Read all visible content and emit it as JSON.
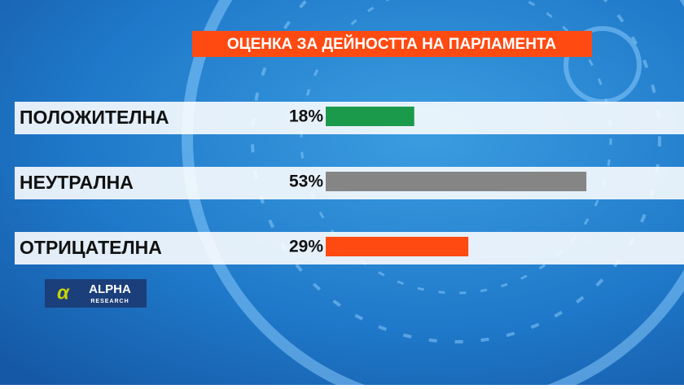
{
  "chart_data": {
    "type": "bar",
    "title": "ОЦЕНКА ЗА ДЕЙНОСТТА НА ПАРЛАМЕНТА",
    "categories": [
      "ПОЛОЖИТЕЛНА",
      "НЕУТРАЛНА",
      "ОТРИЦАТЕЛНА"
    ],
    "values": [
      18,
      53,
      29
    ],
    "value_labels": [
      "18%",
      "53%",
      "29%"
    ],
    "colors": [
      "#1b9a4c",
      "#858585",
      "#ff4a12"
    ]
  },
  "logo": {
    "name": "ALPHA",
    "sub": "RESEARCH"
  }
}
